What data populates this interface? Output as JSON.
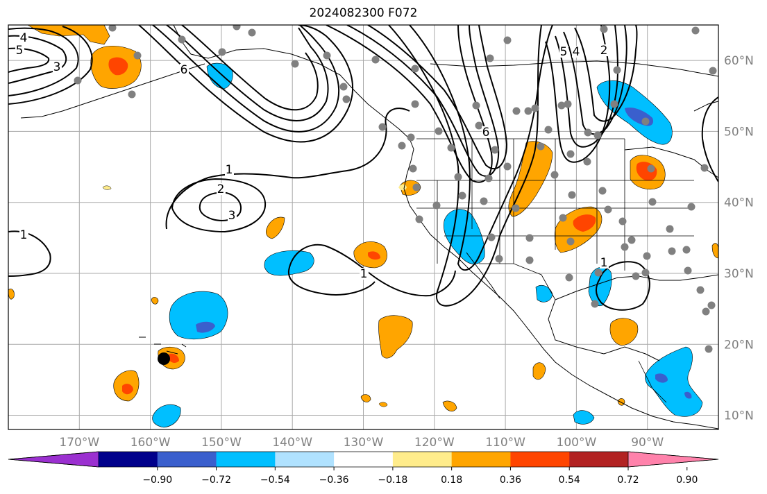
{
  "title": "2024082300 F072",
  "map": {
    "projection": "equirectangular",
    "lon_range": [
      -180,
      -80
    ],
    "lat_range": [
      8,
      65
    ],
    "gridlines": true,
    "lat_labels": [
      "60°N",
      "50°N",
      "40°N",
      "30°N",
      "20°N",
      "10°N"
    ],
    "lat_values": [
      60,
      50,
      40,
      30,
      20,
      10
    ],
    "lon_labels": [
      "170°W",
      "160°W",
      "150°W",
      "140°W",
      "130°W",
      "120°W",
      "110°W",
      "100°W",
      "90°W"
    ],
    "lon_values": [
      -170,
      -160,
      -150,
      -140,
      -130,
      -120,
      -110,
      -100,
      -90
    ],
    "label_color": "#808080"
  },
  "colorbar": {
    "tick_labels": [
      "−0.90",
      "−0.72",
      "−0.54",
      "−0.36",
      "−0.18",
      "0.18",
      "0.36",
      "0.54",
      "0.72",
      "0.90"
    ],
    "bins": [
      {
        "color": "#9b30d0"
      },
      {
        "color": "#00008b"
      },
      {
        "color": "#3a5fcd"
      },
      {
        "color": "#00bfff"
      },
      {
        "color": "#b0e2ff"
      },
      {
        "color": "#ffffff"
      },
      {
        "color": "#ffec8b"
      },
      {
        "color": "#ffa500"
      },
      {
        "color": "#ff4500"
      },
      {
        "color": "#b22222"
      },
      {
        "color": "#ff82ab"
      }
    ],
    "extend": "both"
  },
  "contour_labels": [
    "4",
    "5",
    "3",
    "6",
    "1",
    "2",
    "3",
    "1",
    "1",
    "2",
    "5",
    "4",
    "6",
    "1"
  ],
  "colors": {
    "orange": "#ffa500",
    "red_orange": "#ff4500",
    "light_yellow": "#ffec8b",
    "sky_blue": "#00bfff",
    "royal_blue": "#3a5fcd",
    "station_gray": "#808080",
    "contour": "#000000"
  }
}
